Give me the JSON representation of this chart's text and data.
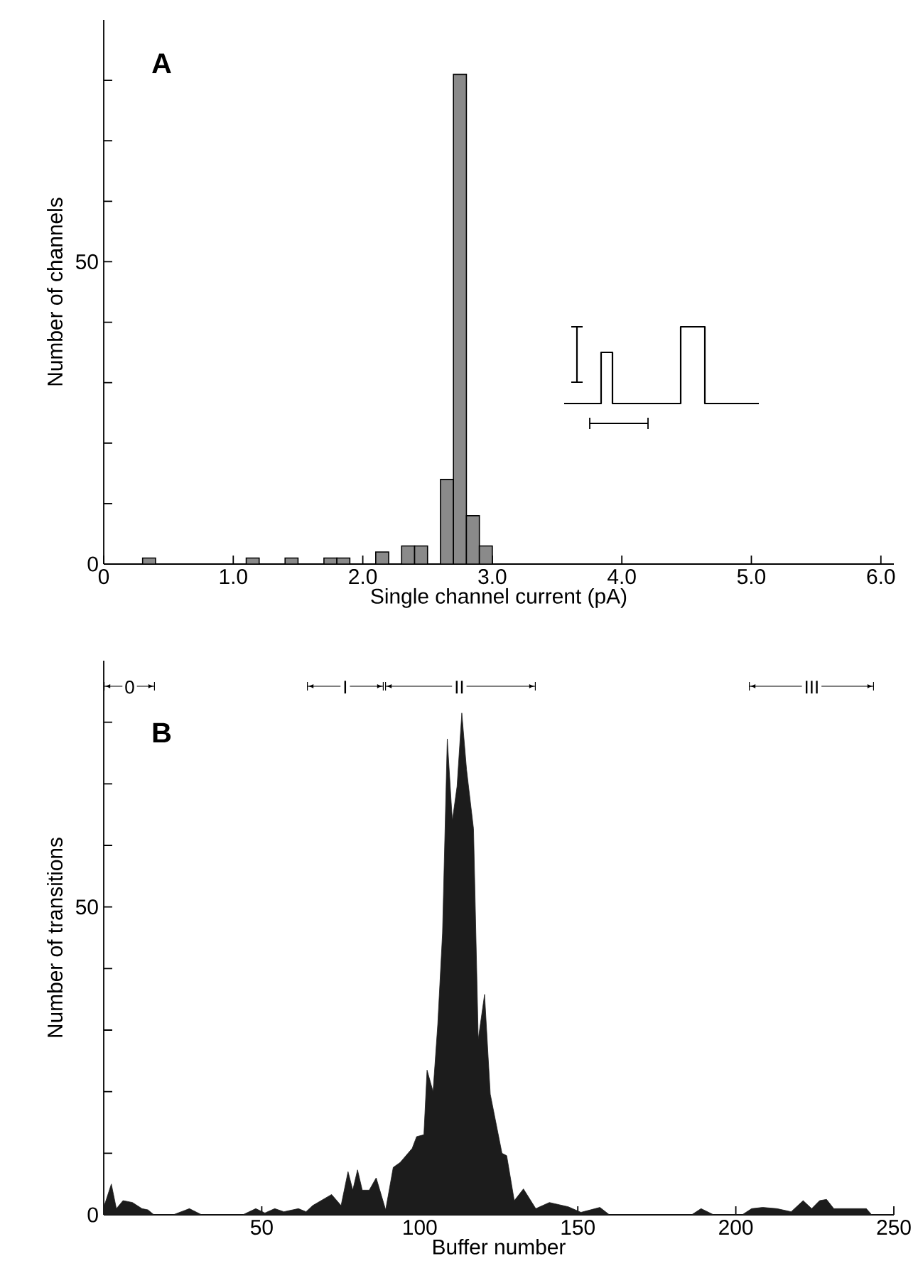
{
  "chart_data": [
    {
      "type": "histogram",
      "xlabel": "Single channel current (pA)",
      "ylabel": "Number of channels",
      "annotations": [
        "A"
      ],
      "color": "#8a8a8a",
      "bins": [
        0.3,
        0.4,
        0.5,
        0.6,
        0.7,
        0.8,
        0.9,
        1.0,
        1.1,
        1.2,
        1.3,
        1.4,
        1.5,
        1.6,
        1.7,
        1.8,
        1.9,
        2.0,
        2.1,
        2.2,
        2.3,
        2.4,
        2.5,
        2.6,
        2.7,
        2.8,
        2.9,
        3.0
      ],
      "values": [
        1,
        0,
        0,
        0,
        0,
        0,
        0,
        0,
        1,
        0,
        0,
        1,
        0,
        0,
        1,
        1,
        0,
        0,
        2,
        0,
        3,
        3,
        0,
        14,
        81,
        8,
        3
      ],
      "xlim": [
        0,
        6.1
      ],
      "xticks": [
        0,
        {
          "value": 1,
          "label": "1.0"
        },
        {
          "value": 2,
          "label": "2.0"
        },
        {
          "value": 3,
          "label": "3.0"
        },
        {
          "value": 4,
          "label": "4.0"
        },
        {
          "value": 5,
          "label": "5.0"
        },
        {
          "value": 6,
          "label": "6.0"
        }
      ],
      "ylim": [
        0,
        90
      ],
      "yticks": [
        0,
        {
          "value": 10,
          "label": null
        },
        {
          "value": 20,
          "label": null
        },
        {
          "value": 30,
          "label": null
        },
        {
          "value": 40,
          "label": null
        },
        50,
        {
          "value": 60,
          "label": null
        },
        {
          "value": 70,
          "label": null
        },
        {
          "value": 80,
          "label": null
        }
      ]
    },
    {
      "type": "area",
      "xlabel": "Buffer number",
      "ylabel": "Number of transitions",
      "annotations": [
        "B",
        {
          "text": "0",
          "x": 8.2,
          "y": 85.7
        },
        {
          "text": "I",
          "x": 76.4,
          "y": 85.7
        },
        {
          "text": "II",
          "x": 112.5,
          "y": 85.7
        },
        {
          "text": "III",
          "x": 224,
          "y": 85.7
        }
      ],
      "color": "#1c1c1c",
      "x": [
        0,
        2.4,
        4,
        6.1,
        9.1,
        12.1,
        14,
        15.9,
        22,
        27.1,
        31,
        44,
        48.1,
        51,
        54.1,
        57,
        61.6,
        64,
        66.1,
        72.1,
        75.1,
        77.3,
        78.8,
        80.3,
        81.8,
        84,
        86.2,
        89.2,
        91.6,
        93.8,
        97.6,
        99,
        101.3,
        102.3,
        104.2,
        105.7,
        107.2,
        108.7,
        110.3,
        111.8,
        113.3,
        114.8,
        117,
        118.5,
        120.5,
        122.3,
        126,
        127.5,
        129.9,
        132.8,
        136.7,
        141,
        147,
        151,
        157,
        160,
        186,
        189,
        193,
        202,
        205,
        208.5,
        213,
        217.5,
        221.3,
        224,
        226.5,
        228.7,
        231,
        234.6,
        237.7,
        241.3,
        243,
        250
      ],
      "values": [
        1.2,
        5,
        1,
        2.3,
        2,
        1,
        0.8,
        0,
        0,
        1,
        0,
        0,
        1,
        0.3,
        1,
        0.5,
        1,
        0.5,
        1.5,
        3.3,
        1.5,
        7,
        4,
        7.3,
        4,
        4,
        6,
        0.8,
        7.7,
        8.5,
        10.8,
        12.7,
        13,
        23.5,
        20,
        31,
        45.8,
        77.3,
        64,
        69.6,
        81.5,
        72.3,
        62.7,
        28.5,
        35.8,
        19.6,
        10,
        9.6,
        2.3,
        4.2,
        1,
        2,
        1.3,
        0.4,
        1.2,
        0,
        0,
        1,
        0,
        0,
        1,
        1.2,
        1,
        0.5,
        2.3,
        1,
        2.3,
        2.5,
        1,
        1,
        1,
        1,
        0,
        0
      ],
      "xlim": [
        0,
        250
      ],
      "xticks": [
        50,
        100,
        150,
        200,
        250
      ],
      "ylim": [
        0,
        90
      ],
      "yticks": [
        0,
        {
          "value": 10,
          "label": null
        },
        {
          "value": 20,
          "label": null
        },
        {
          "value": 30,
          "label": null
        },
        {
          "value": 40,
          "label": null
        },
        50,
        {
          "value": 60,
          "label": null
        },
        {
          "value": 70,
          "label": null
        },
        {
          "value": 80,
          "label": null
        }
      ]
    }
  ]
}
